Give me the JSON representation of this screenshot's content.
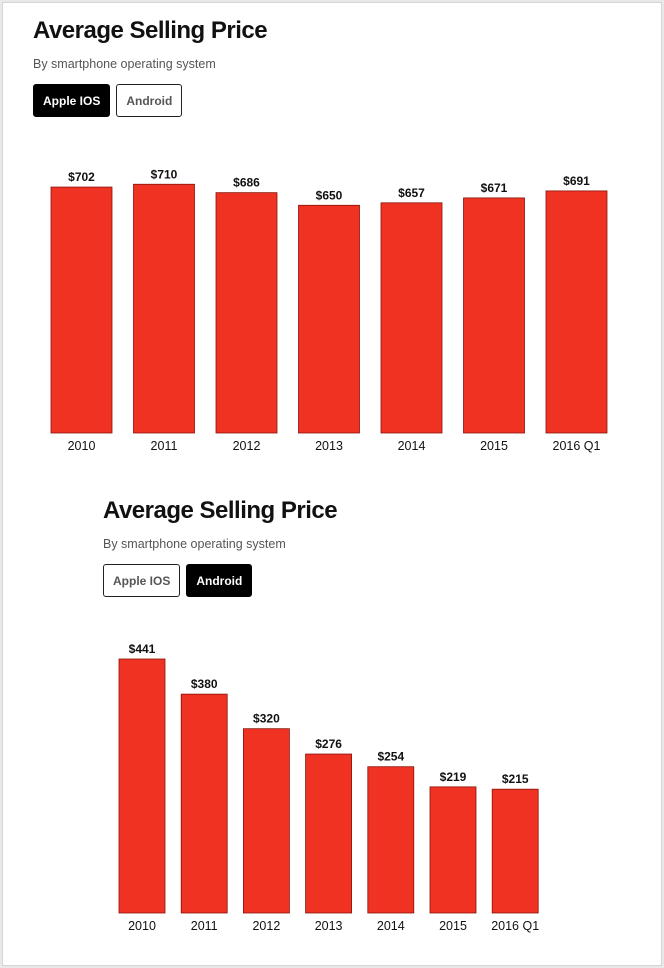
{
  "bar_color": "#ef3222",
  "chart_data": [
    {
      "type": "bar",
      "title": "Average Selling Price",
      "subtitle": "By smartphone operating system",
      "toggles": [
        {
          "label": "Apple IOS",
          "active": true
        },
        {
          "label": "Android",
          "active": false
        }
      ],
      "categories": [
        "2010",
        "2011",
        "2012",
        "2013",
        "2014",
        "2015",
        "2016 Q1"
      ],
      "values": [
        702,
        710,
        686,
        650,
        657,
        671,
        691
      ],
      "value_labels": [
        "$702",
        "$710",
        "$686",
        "$650",
        "$657",
        "$671",
        "$691"
      ],
      "xlabel": "",
      "ylabel": "",
      "ylim": [
        0,
        725
      ]
    },
    {
      "type": "bar",
      "title": "Average Selling Price",
      "subtitle": "By smartphone operating system",
      "toggles": [
        {
          "label": "Apple IOS",
          "active": false
        },
        {
          "label": "Android",
          "active": true
        }
      ],
      "categories": [
        "2010",
        "2011",
        "2012",
        "2013",
        "2014",
        "2015",
        "2016 Q1"
      ],
      "values": [
        441,
        380,
        320,
        276,
        254,
        219,
        215
      ],
      "value_labels": [
        "$441",
        "$380",
        "$320",
        "$276",
        "$254",
        "$219",
        "$215"
      ],
      "xlabel": "",
      "ylabel": "",
      "ylim": [
        0,
        441
      ]
    }
  ]
}
